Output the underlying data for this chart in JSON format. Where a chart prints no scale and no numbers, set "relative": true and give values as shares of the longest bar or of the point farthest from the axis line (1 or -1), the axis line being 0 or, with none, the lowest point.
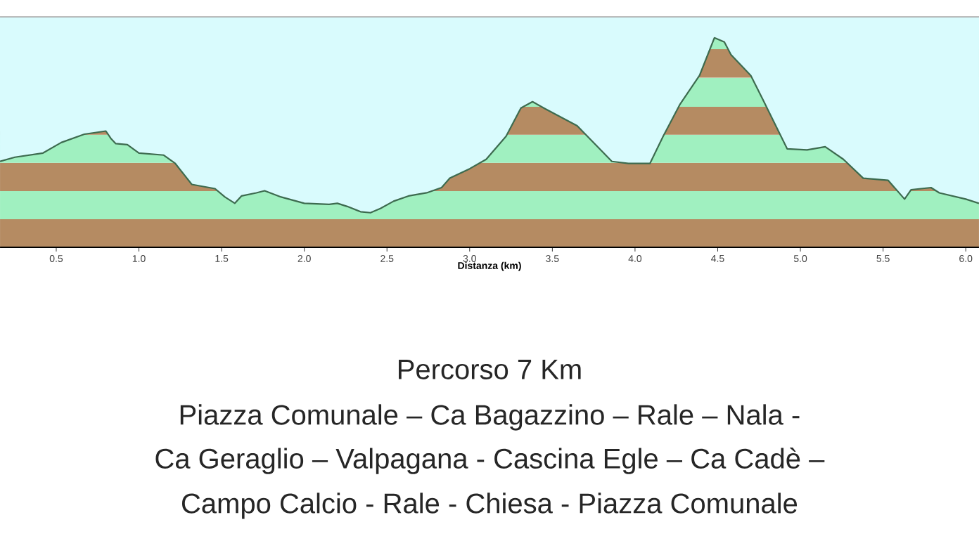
{
  "chart_data": {
    "type": "area",
    "relative": true,
    "xlabel": "Distanza (km)",
    "xlim": [
      0.16,
      6.08
    ],
    "xticks": [
      {
        "value": 0.5,
        "label": "0.5"
      },
      {
        "value": 1.0,
        "label": "1.0"
      },
      {
        "value": 1.5,
        "label": "1.5"
      },
      {
        "value": 2.0,
        "label": "2.0"
      },
      {
        "value": 2.5,
        "label": "2.5"
      },
      {
        "value": 3.0,
        "label": "3.0"
      },
      {
        "value": 3.5,
        "label": "3.5"
      },
      {
        "value": 4.0,
        "label": "4.0"
      },
      {
        "value": 4.5,
        "label": "4.5"
      },
      {
        "value": 5.0,
        "label": "5.0"
      },
      {
        "value": 5.5,
        "label": "5.5"
      },
      {
        "value": 6.0,
        "label": "6.0"
      }
    ],
    "series": [
      {
        "color": "#3d6b4f",
        "x": [
          0.16,
          0.25,
          0.42,
          0.53,
          0.67,
          0.8,
          0.83,
          0.86,
          0.93,
          1.0,
          1.15,
          1.22,
          1.32,
          1.46,
          1.52,
          1.58,
          1.62,
          1.71,
          1.76,
          1.86,
          2.0,
          2.15,
          2.2,
          2.26,
          2.34,
          2.4,
          2.46,
          2.54,
          2.63,
          2.74,
          2.83,
          2.88,
          3.0,
          3.1,
          3.22,
          3.31,
          3.38,
          3.46,
          3.65,
          3.86,
          3.96,
          4.09,
          4.17,
          4.27,
          4.39,
          4.48,
          4.54,
          4.58,
          4.7,
          4.77,
          4.92,
          5.04,
          5.15,
          5.26,
          5.38,
          5.53,
          5.63,
          5.67,
          5.79,
          5.84,
          6.0,
          6.08
        ],
        "values": [
          0.41,
          0.43,
          0.45,
          0.5,
          0.54,
          0.555,
          0.52,
          0.495,
          0.49,
          0.45,
          0.44,
          0.4,
          0.3,
          0.28,
          0.24,
          0.21,
          0.245,
          0.26,
          0.27,
          0.24,
          0.21,
          0.205,
          0.21,
          0.195,
          0.17,
          0.165,
          0.185,
          0.22,
          0.245,
          0.26,
          0.285,
          0.33,
          0.375,
          0.42,
          0.53,
          0.665,
          0.695,
          0.66,
          0.58,
          0.41,
          0.4,
          0.4,
          0.53,
          0.68,
          0.82,
          1.0,
          0.98,
          0.92,
          0.82,
          0.71,
          0.47,
          0.465,
          0.48,
          0.42,
          0.33,
          0.32,
          0.23,
          0.275,
          0.285,
          0.26,
          0.23,
          0.21
        ]
      }
    ],
    "bands": [
      {
        "axis": "y",
        "from": 0,
        "to": 0.134,
        "color": "#b58b62"
      },
      {
        "axis": "y",
        "from": 0.134,
        "to": 0.268,
        "color": "#a0f0c0"
      },
      {
        "axis": "y",
        "from": 0.268,
        "to": 0.403,
        "color": "#b58b62"
      },
      {
        "axis": "y",
        "from": 0.403,
        "to": 0.537,
        "color": "#a0f0c0"
      },
      {
        "axis": "y",
        "from": 0.537,
        "to": 0.671,
        "color": "#b58b62"
      },
      {
        "axis": "y",
        "from": 0.671,
        "to": 0.81,
        "color": "#a0f0c0"
      },
      {
        "axis": "y",
        "from": 0.81,
        "to": 0.946,
        "color": "#b58b62"
      },
      {
        "axis": "y",
        "from": 0.946,
        "to": 1.0,
        "color": "#a0f0c0"
      }
    ],
    "annotations": [
      "Percorso 7 Km",
      "Piazza Comunale – Ca Bagazzino – Rale – Nala -",
      "Ca Geraglio – Valpagana - Cascina Egle – Ca Cadè –",
      "Campo Calcio - Rale - Chiesa - Piazza Comunale"
    ],
    "grid": false
  }
}
